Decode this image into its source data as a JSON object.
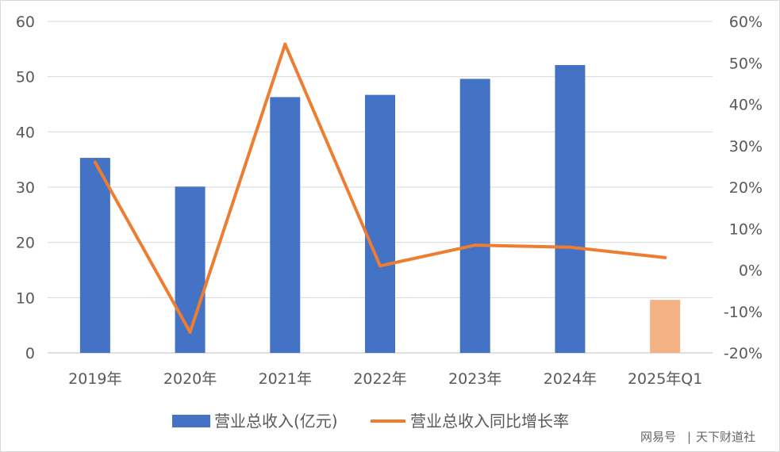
{
  "chart_data": {
    "type": "bar",
    "categories": [
      "2019年",
      "2020年",
      "2021年",
      "2022年",
      "2023年",
      "2024年",
      "2025年Q1"
    ],
    "series": [
      {
        "name": "营业总收入(亿元)",
        "kind": "bar",
        "axis": "left",
        "color": "#4472C4",
        "values": [
          35.3,
          30.1,
          46.3,
          46.7,
          49.6,
          52.1,
          9.6
        ]
      },
      {
        "name": "营业总收入同比增长率",
        "kind": "line",
        "axis": "right",
        "color": "#ED7D31",
        "values": [
          26,
          -15,
          54.5,
          1,
          6,
          5.5,
          3
        ]
      }
    ],
    "highlight": {
      "index": 6,
      "color": "#F4B183"
    },
    "ylim_left": [
      0,
      60
    ],
    "yticks_left": [
      "60",
      "50",
      "40",
      "30",
      "20",
      "10",
      "0"
    ],
    "ylim_right": [
      -20,
      60
    ],
    "yticks_right": [
      "60%",
      "50%",
      "40%",
      "30%",
      "20%",
      "10%",
      "0%",
      "-10%",
      "-20%"
    ],
    "grid": true,
    "legend": "bottom"
  },
  "watermark": {
    "source": "网易号",
    "separator": "|",
    "author": "天下财道社"
  }
}
